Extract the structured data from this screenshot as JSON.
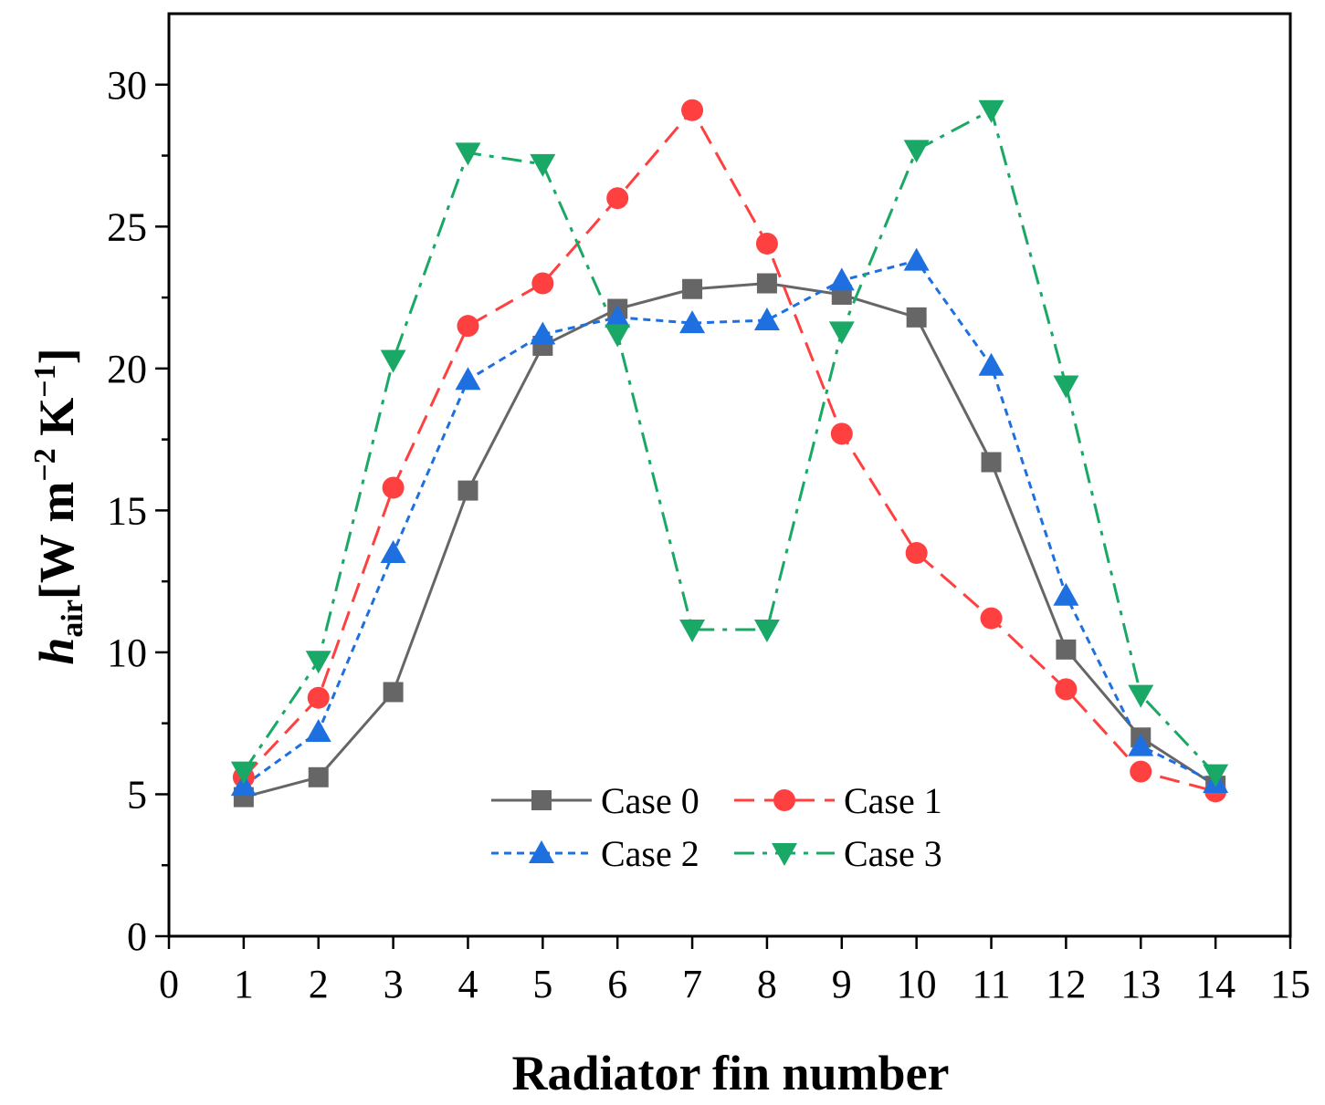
{
  "chart_data": {
    "type": "line",
    "title": "",
    "xlabel": "Radiator fin number",
    "ylabel": {
      "symbol": "h",
      "subscript": "air",
      "unit_open": "[W m",
      "exp1": "−2",
      "unit_mid": " K",
      "exp2": "−1",
      "unit_close": "]"
    },
    "xlim": [
      0,
      15
    ],
    "ylim": [
      0,
      32.5
    ],
    "xticks": [
      0,
      1,
      2,
      3,
      4,
      5,
      6,
      7,
      8,
      9,
      10,
      11,
      12,
      13,
      14,
      15
    ],
    "yticks": [
      0,
      5,
      10,
      15,
      20,
      25,
      30
    ],
    "grid": false,
    "legend_position": "bottom-center",
    "x": [
      1,
      2,
      3,
      4,
      5,
      6,
      7,
      8,
      9,
      10,
      11,
      12,
      13,
      14
    ],
    "series": [
      {
        "name": "Case 0",
        "color": "#666666",
        "line": "solid",
        "marker": "square",
        "values": [
          4.9,
          5.6,
          8.6,
          15.7,
          20.8,
          22.1,
          22.8,
          23.0,
          22.6,
          21.8,
          16.7,
          10.1,
          7.0,
          5.3
        ]
      },
      {
        "name": "Case 1",
        "color": "#ff4040",
        "line": "dash",
        "marker": "circle",
        "values": [
          5.6,
          8.4,
          15.8,
          21.5,
          23.0,
          26.0,
          29.1,
          24.4,
          17.7,
          13.5,
          11.2,
          8.7,
          5.8,
          5.1
        ]
      },
      {
        "name": "Case 2",
        "color": "#1e6fe0",
        "line": "dot",
        "marker": "triangle-up",
        "values": [
          5.3,
          7.2,
          13.5,
          19.6,
          21.2,
          21.8,
          21.6,
          21.7,
          23.1,
          23.8,
          20.1,
          12.0,
          6.7,
          5.4
        ]
      },
      {
        "name": "Case 3",
        "color": "#1aa866",
        "line": "dashdot",
        "marker": "triangle-down",
        "values": [
          5.8,
          9.7,
          20.3,
          27.6,
          27.2,
          21.2,
          10.8,
          10.8,
          21.3,
          27.7,
          29.1,
          19.4,
          8.5,
          5.7
        ]
      }
    ]
  }
}
